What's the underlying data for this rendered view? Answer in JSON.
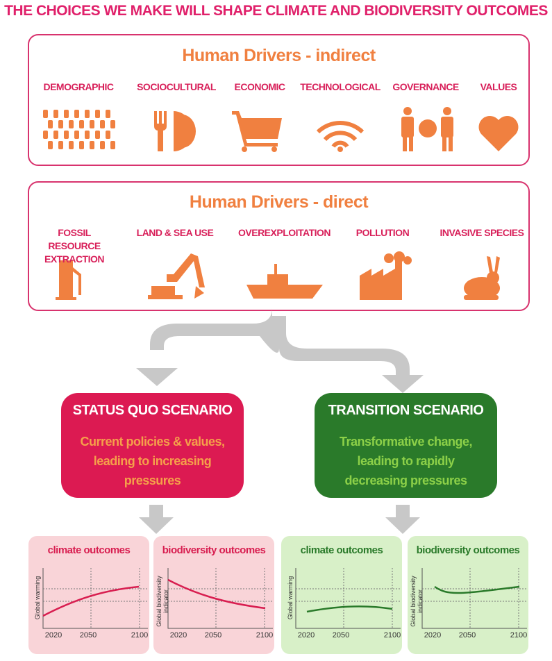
{
  "title": "THE CHOICES WE MAKE WILL SHAPE CLIMATE AND BIODIVERSITY OUTCOMES",
  "indirect": {
    "title": "Human Drivers - indirect",
    "items": [
      "DEMOGRAPHIC",
      "SOCIOCULTURAL",
      "ECONOMIC",
      "TECHNOLOGICAL",
      "GOVERNANCE",
      "VALUES"
    ]
  },
  "direct": {
    "title": "Human Drivers - direct",
    "items": [
      "FOSSIL RESOURCE EXTRACTION",
      "LAND & SEA USE",
      "OVEREXPLOITATION",
      "POLLUTION",
      "INVASIVE SPECIES"
    ]
  },
  "scenarios": [
    {
      "title": "STATUS QUO SCENARIO",
      "description": "Current policies & values, leading to increasing pressures"
    },
    {
      "title": "TRANSITION SCENARIO",
      "description": "Transformative change, leading to rapidly decreasing pressures"
    }
  ],
  "outcomes": [
    {
      "title": "climate outcomes",
      "y_label": "Global warming",
      "x_ticks": [
        "2020",
        "2050",
        "2100"
      ]
    },
    {
      "title": "biodiversity outcomes",
      "y_label": "Global biodiversity indicator",
      "x_ticks": [
        "2020",
        "2050",
        "2100"
      ]
    },
    {
      "title": "climate outcomes",
      "y_label": "Global warming",
      "x_ticks": [
        "2020",
        "2050",
        "2100"
      ]
    },
    {
      "title": "biodiversity outcomes",
      "y_label": "Global biodiversity indicator",
      "x_ticks": [
        "2020",
        "2050",
        "2100"
      ]
    }
  ]
}
